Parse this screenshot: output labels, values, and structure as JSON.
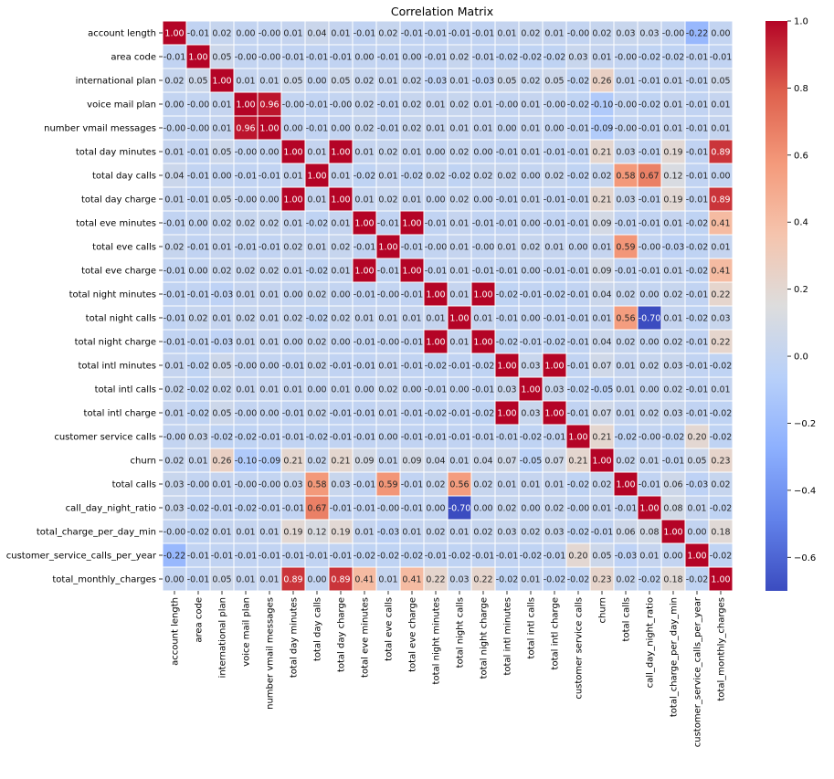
{
  "chart_data": {
    "type": "heatmap",
    "title": "Correlation Matrix",
    "labels": [
      "account length",
      "area code",
      "international plan",
      "voice mail plan",
      "number vmail messages",
      "total day minutes",
      "total day calls",
      "total day charge",
      "total eve minutes",
      "total eve calls",
      "total eve charge",
      "total night minutes",
      "total night calls",
      "total night charge",
      "total intl minutes",
      "total intl calls",
      "total intl charge",
      "customer service calls",
      "churn",
      "total calls",
      "call_day_night_ratio",
      "total_charge_per_day_min",
      "customer_service_calls_per_year",
      "total_monthly_charges"
    ],
    "matrix": [
      [
        1.0,
        -0.01,
        0.02,
        0.0,
        -0.0,
        0.01,
        0.04,
        0.01,
        -0.01,
        0.02,
        -0.01,
        -0.01,
        -0.01,
        -0.01,
        0.01,
        0.02,
        0.01,
        -0.0,
        0.02,
        0.03,
        0.03,
        -0.0,
        -0.22,
        0.0
      ],
      [
        -0.01,
        1.0,
        0.05,
        -0.0,
        -0.0,
        -0.01,
        -0.01,
        -0.01,
        0.0,
        -0.01,
        0.0,
        -0.01,
        0.02,
        -0.01,
        -0.02,
        -0.02,
        -0.02,
        0.03,
        0.01,
        -0.0,
        -0.02,
        -0.02,
        -0.01,
        -0.01
      ],
      [
        0.02,
        0.05,
        1.0,
        0.01,
        0.01,
        0.05,
        0.0,
        0.05,
        0.02,
        0.01,
        0.02,
        -0.03,
        0.01,
        -0.03,
        0.05,
        0.02,
        0.05,
        -0.02,
        0.26,
        0.01,
        -0.01,
        0.01,
        -0.01,
        0.05
      ],
      [
        0.0,
        -0.0,
        0.01,
        1.0,
        0.96,
        -0.0,
        -0.01,
        -0.0,
        0.02,
        -0.01,
        0.02,
        0.01,
        0.02,
        0.01,
        -0.0,
        0.01,
        -0.0,
        -0.02,
        -0.1,
        -0.0,
        -0.02,
        0.01,
        -0.01,
        0.01
      ],
      [
        -0.0,
        -0.0,
        0.01,
        0.96,
        1.0,
        0.0,
        -0.01,
        0.0,
        0.02,
        -0.01,
        0.02,
        0.01,
        0.01,
        0.01,
        0.0,
        0.01,
        0.0,
        -0.01,
        -0.09,
        -0.0,
        -0.01,
        0.01,
        -0.01,
        0.01
      ],
      [
        0.01,
        -0.01,
        0.05,
        -0.0,
        0.0,
        1.0,
        0.01,
        1.0,
        0.01,
        0.02,
        0.01,
        0.0,
        0.02,
        0.0,
        -0.01,
        0.01,
        -0.01,
        -0.01,
        0.21,
        0.03,
        -0.01,
        0.19,
        -0.01,
        0.89
      ],
      [
        0.04,
        -0.01,
        0.0,
        -0.01,
        -0.01,
        0.01,
        1.0,
        0.01,
        -0.02,
        0.01,
        -0.02,
        0.02,
        -0.02,
        0.02,
        0.02,
        0.0,
        0.02,
        -0.02,
        0.02,
        0.58,
        0.67,
        0.12,
        -0.01,
        0.0
      ],
      [
        0.01,
        -0.01,
        0.05,
        -0.0,
        0.0,
        1.0,
        0.01,
        1.0,
        0.01,
        0.02,
        0.01,
        0.0,
        0.02,
        0.0,
        -0.01,
        0.01,
        -0.01,
        -0.01,
        0.21,
        0.03,
        -0.01,
        0.19,
        -0.01,
        0.89
      ],
      [
        -0.01,
        0.0,
        0.02,
        0.02,
        0.02,
        0.01,
        -0.02,
        0.01,
        1.0,
        -0.01,
        1.0,
        -0.01,
        0.01,
        -0.01,
        -0.01,
        0.0,
        -0.01,
        -0.01,
        0.09,
        -0.01,
        -0.01,
        0.01,
        -0.02,
        0.41
      ],
      [
        0.02,
        -0.01,
        0.01,
        -0.01,
        -0.01,
        0.02,
        0.01,
        0.02,
        -0.01,
        1.0,
        -0.01,
        -0.0,
        0.01,
        -0.0,
        0.01,
        0.02,
        0.01,
        0.0,
        0.01,
        0.59,
        -0.0,
        -0.03,
        -0.02,
        0.01
      ],
      [
        -0.01,
        0.0,
        0.02,
        0.02,
        0.02,
        0.01,
        -0.02,
        0.01,
        1.0,
        -0.01,
        1.0,
        -0.01,
        0.01,
        -0.01,
        -0.01,
        0.0,
        -0.01,
        -0.01,
        0.09,
        -0.01,
        -0.01,
        0.01,
        -0.02,
        0.41
      ],
      [
        -0.01,
        -0.01,
        -0.03,
        0.01,
        0.01,
        0.0,
        0.02,
        0.0,
        -0.01,
        -0.0,
        -0.01,
        1.0,
        0.01,
        1.0,
        -0.02,
        -0.01,
        -0.02,
        -0.01,
        0.04,
        0.02,
        0.0,
        0.02,
        -0.01,
        0.22
      ],
      [
        -0.01,
        0.02,
        0.01,
        0.02,
        0.01,
        0.02,
        -0.02,
        0.02,
        0.01,
        0.01,
        0.01,
        0.01,
        1.0,
        0.01,
        -0.01,
        0.0,
        -0.01,
        -0.01,
        0.01,
        0.56,
        -0.7,
        0.01,
        -0.02,
        0.03
      ],
      [
        -0.01,
        -0.01,
        -0.03,
        0.01,
        0.01,
        0.0,
        0.02,
        0.0,
        -0.01,
        -0.0,
        -0.01,
        1.0,
        0.01,
        1.0,
        -0.02,
        -0.01,
        -0.02,
        -0.01,
        0.04,
        0.02,
        0.0,
        0.02,
        -0.01,
        0.22
      ],
      [
        0.01,
        -0.02,
        0.05,
        -0.0,
        0.0,
        -0.01,
        0.02,
        -0.01,
        -0.01,
        0.01,
        -0.01,
        -0.02,
        -0.01,
        -0.02,
        1.0,
        0.03,
        1.0,
        -0.01,
        0.07,
        0.01,
        0.02,
        0.03,
        -0.01,
        -0.02
      ],
      [
        0.02,
        -0.02,
        0.02,
        0.01,
        0.01,
        0.01,
        0.0,
        0.01,
        0.0,
        0.02,
        0.0,
        -0.01,
        0.0,
        -0.01,
        0.03,
        1.0,
        0.03,
        -0.02,
        -0.05,
        0.01,
        0.0,
        0.02,
        -0.01,
        0.01
      ],
      [
        0.01,
        -0.02,
        0.05,
        -0.0,
        0.0,
        -0.01,
        0.02,
        -0.01,
        -0.01,
        0.01,
        -0.01,
        -0.02,
        -0.01,
        -0.02,
        1.0,
        0.03,
        1.0,
        -0.01,
        0.07,
        0.01,
        0.02,
        0.03,
        -0.01,
        -0.02
      ],
      [
        -0.0,
        0.03,
        -0.02,
        -0.02,
        -0.01,
        -0.01,
        -0.02,
        -0.01,
        -0.01,
        0.0,
        -0.01,
        -0.01,
        -0.01,
        -0.01,
        -0.01,
        -0.02,
        -0.01,
        1.0,
        0.21,
        -0.02,
        -0.0,
        -0.02,
        0.2,
        -0.02
      ],
      [
        0.02,
        0.01,
        0.26,
        -0.1,
        -0.09,
        0.21,
        0.02,
        0.21,
        0.09,
        0.01,
        0.09,
        0.04,
        0.01,
        0.04,
        0.07,
        -0.05,
        0.07,
        0.21,
        1.0,
        0.02,
        0.01,
        -0.01,
        0.05,
        0.23
      ],
      [
        0.03,
        -0.0,
        0.01,
        -0.0,
        -0.0,
        0.03,
        0.58,
        0.03,
        -0.01,
        0.59,
        -0.01,
        0.02,
        0.56,
        0.02,
        0.01,
        0.01,
        0.01,
        -0.02,
        0.02,
        1.0,
        -0.01,
        0.06,
        -0.03,
        0.02
      ],
      [
        0.03,
        -0.02,
        -0.01,
        -0.02,
        -0.01,
        -0.01,
        0.67,
        -0.01,
        -0.01,
        -0.0,
        -0.01,
        0.0,
        -0.7,
        0.0,
        0.02,
        0.0,
        0.02,
        -0.0,
        0.01,
        -0.01,
        1.0,
        0.08,
        0.01,
        -0.02
      ],
      [
        -0.0,
        -0.02,
        0.01,
        0.01,
        0.01,
        0.19,
        0.12,
        0.19,
        0.01,
        -0.03,
        0.01,
        0.02,
        0.01,
        0.02,
        0.03,
        0.02,
        0.03,
        -0.02,
        -0.01,
        0.06,
        0.08,
        1.0,
        0.0,
        0.18
      ],
      [
        -0.22,
        -0.01,
        -0.01,
        -0.01,
        -0.01,
        -0.01,
        -0.01,
        -0.01,
        -0.02,
        -0.02,
        -0.02,
        -0.01,
        -0.02,
        -0.01,
        -0.01,
        -0.02,
        -0.01,
        0.2,
        0.05,
        -0.03,
        0.01,
        0.0,
        1.0,
        -0.02
      ],
      [
        0.0,
        -0.01,
        0.05,
        0.01,
        0.01,
        0.89,
        0.0,
        0.89,
        0.41,
        0.01,
        0.41,
        0.22,
        0.03,
        0.22,
        -0.02,
        0.01,
        -0.02,
        -0.02,
        0.23,
        0.02,
        -0.02,
        0.18,
        -0.02,
        1.0
      ]
    ],
    "colormap": "coolwarm",
    "vmin": -0.7,
    "vmax": 1.0,
    "colorbar_ticks": [
      "1.0",
      "0.8",
      "0.6",
      "0.4",
      "0.2",
      "0.0",
      "−0.2",
      "−0.4",
      "−0.6"
    ],
    "colorbar_tick_values": [
      1.0,
      0.8,
      0.6,
      0.4,
      0.2,
      0.0,
      -0.2,
      -0.4,
      -0.6
    ],
    "annotations": true,
    "value_format": "2 decimals",
    "cell_border_color": "#ffffff",
    "colors": {
      "low": "#3b4cc0",
      "mid": "#dddddd",
      "high": "#b40426"
    }
  }
}
